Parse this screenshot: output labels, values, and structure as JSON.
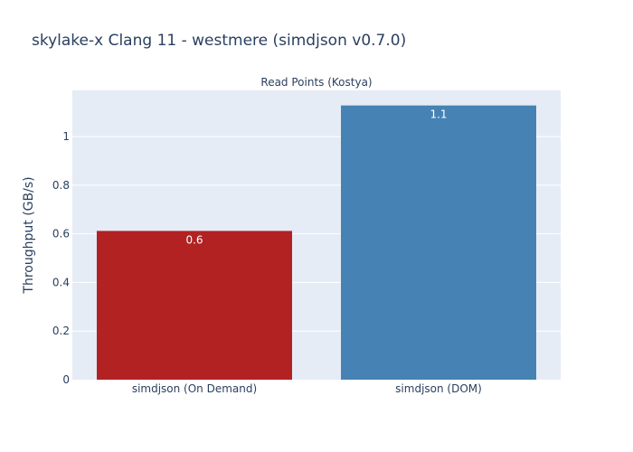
{
  "title": "skylake-x Clang 11 - westmere (simdjson v0.7.0)",
  "chart_data": {
    "type": "bar",
    "title": "Read Points (Kostya)",
    "xlabel": "",
    "ylabel": "Throughput (GB/s)",
    "categories": [
      "simdjson (On Demand)",
      "simdjson (DOM)"
    ],
    "values": [
      0.612,
      1.128
    ],
    "data_labels": [
      "0.6",
      "1.1"
    ],
    "colors": [
      "#b22222",
      "#4682b4"
    ],
    "ylim": [
      0,
      1.19
    ],
    "yticks": [
      0,
      0.2,
      0.4,
      0.6,
      0.8,
      1
    ],
    "ytick_labels": [
      "0",
      "0.2",
      "0.4",
      "0.6",
      "0.8",
      "1"
    ],
    "grid": true,
    "plot_bg": "#e5ecf6"
  }
}
